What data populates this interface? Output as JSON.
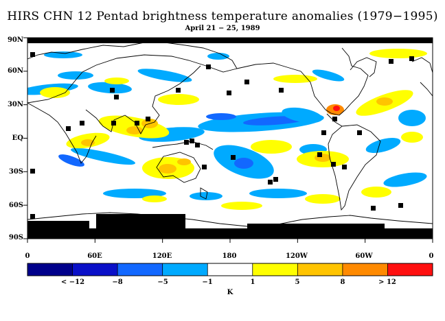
{
  "title": "HIRS CHN 12 Pentad brightness temperature anomalies (1979−1995)",
  "subtitle": "April 21 − 25, 1989",
  "y_ticks": [
    "90N",
    "60N",
    "30N",
    "EQ",
    "30S",
    "60S",
    "90S"
  ],
  "x_ticks": [
    "0",
    "60E",
    "120E",
    "180",
    "120W",
    "60W",
    "0"
  ],
  "colorbar": {
    "colors": [
      "#00008b",
      "#0a10c8",
      "#1268ff",
      "#00aaff",
      "#ffffff",
      "#ffff00",
      "#ffc400",
      "#ff8a00",
      "#ff1010"
    ],
    "labels": [
      "< −12",
      "−8",
      "−5",
      "−1",
      "1",
      "5",
      "8",
      "> 12"
    ]
  },
  "unit": "K"
}
